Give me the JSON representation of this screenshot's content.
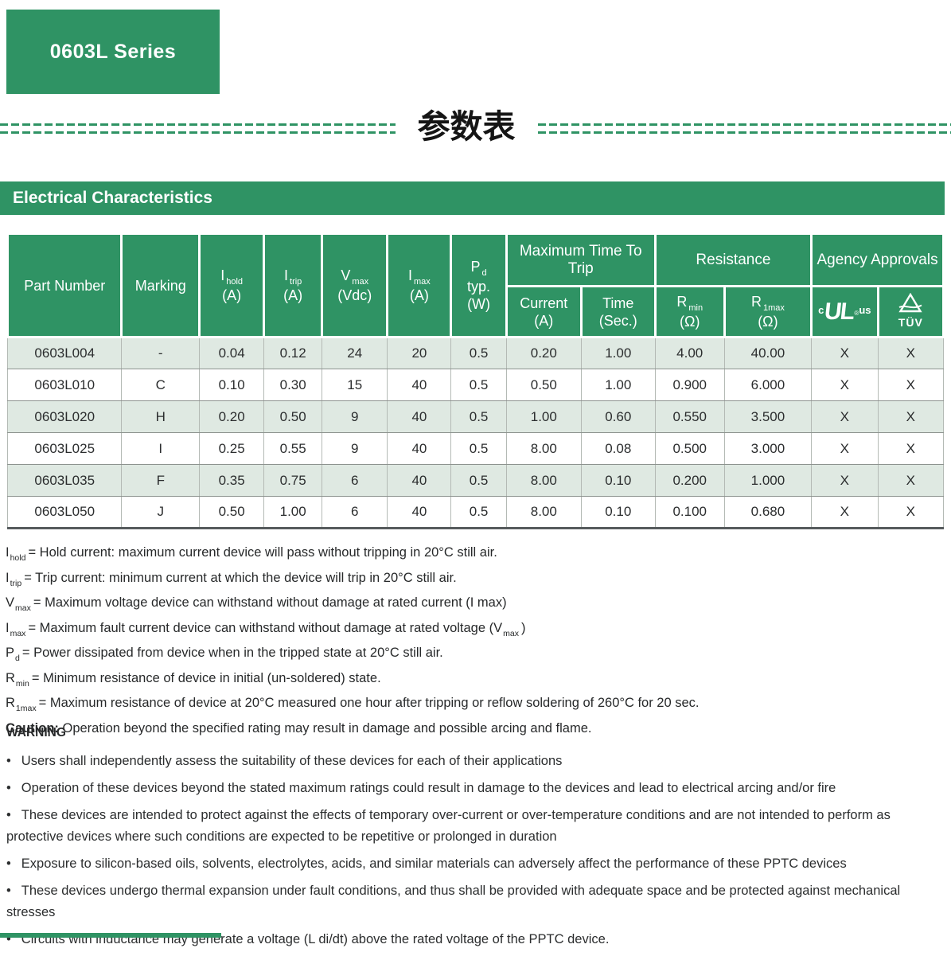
{
  "badge": {
    "label": "0603L Series"
  },
  "section_title_cn": "参数表",
  "table": {
    "title": "Electrical Characteristics",
    "header": {
      "part_number": "Part Number",
      "marking": "Marking",
      "sym_cols": [
        {
          "sym": "I",
          "sub": "hold",
          "unit": "(A)"
        },
        {
          "sym": "I",
          "sub": "trip",
          "unit": "(A)"
        },
        {
          "sym": "V",
          "sub": "max",
          "unit": "(Vdc)"
        },
        {
          "sym": "I",
          "sub": "max",
          "unit": "(A)"
        },
        {
          "sym": "P",
          "sub": "d",
          "mid": "typ.",
          "unit": "(W)"
        }
      ],
      "groups": [
        {
          "label": "Maximum Time To Trip",
          "children": [
            {
              "type": "text",
              "top": "Current",
              "unit": "(A)"
            },
            {
              "type": "text",
              "top": "Time",
              "unit": "(Sec.)"
            }
          ]
        },
        {
          "label": "Resistance",
          "children": [
            {
              "type": "sym",
              "sym": "R",
              "sub": "min",
              "unit": "(Ω)"
            },
            {
              "type": "sym",
              "sym": "R",
              "sub": "1max",
              "unit": "(Ω)"
            }
          ]
        },
        {
          "label": "Agency Approvals",
          "children": [
            {
              "type": "ul",
              "c": "c",
              "main": "UL",
              "reg": "®",
              "us": "us"
            },
            {
              "type": "tuv",
              "label": "TÜV"
            }
          ]
        }
      ]
    },
    "rows": [
      [
        "0603L004",
        "-",
        "0.04",
        "0.12",
        "24",
        "20",
        "0.5",
        "0.20",
        "1.00",
        "4.00",
        "40.00",
        "X",
        "X"
      ],
      [
        "0603L010",
        "C",
        "0.10",
        "0.30",
        "15",
        "40",
        "0.5",
        "0.50",
        "1.00",
        "0.900",
        "6.000",
        "X",
        "X"
      ],
      [
        "0603L020",
        "H",
        "0.20",
        "0.50",
        "9",
        "40",
        "0.5",
        "1.00",
        "0.60",
        "0.550",
        "3.500",
        "X",
        "X"
      ],
      [
        "0603L025",
        "I",
        "0.25",
        "0.55",
        "9",
        "40",
        "0.5",
        "8.00",
        "0.08",
        "0.500",
        "3.000",
        "X",
        "X"
      ],
      [
        "0603L035",
        "F",
        "0.35",
        "0.75",
        "6",
        "40",
        "0.5",
        "8.00",
        "0.10",
        "0.200",
        "1.000",
        "X",
        "X"
      ],
      [
        "0603L050",
        "J",
        "0.50",
        "1.00",
        "6",
        "40",
        "0.5",
        "8.00",
        "0.10",
        "0.100",
        "0.680",
        "X",
        "X"
      ]
    ]
  },
  "footnotes": [
    [
      {
        "t": "I"
      },
      {
        "t": "hold",
        "sub": true
      },
      {
        "t": "= Hold current: maximum current device will pass without tripping in 20°C still air."
      }
    ],
    [
      {
        "t": "I"
      },
      {
        "t": "trip",
        "sub": true
      },
      {
        "t": "= Trip current: minimum current at which the device will trip in 20°C still air."
      }
    ],
    [
      {
        "t": "V"
      },
      {
        "t": "max",
        "sub": true
      },
      {
        "t": "= Maximum voltage device can withstand without damage at rated current (I max)"
      }
    ],
    [
      {
        "t": "I"
      },
      {
        "t": "max",
        "sub": true
      },
      {
        "t": "= Maximum fault current device can withstand without damage at rated voltage (V"
      },
      {
        "t": "max",
        "sub": true
      },
      {
        "t": ")"
      }
    ],
    [
      {
        "t": "P"
      },
      {
        "t": "d",
        "sub": true
      },
      {
        "t": "= Power dissipated from device when in the tripped state at 20°C still air."
      }
    ],
    [
      {
        "t": "R"
      },
      {
        "t": "min",
        "sub": true
      },
      {
        "t": "= Minimum resistance of device in initial (un-soldered) state."
      }
    ],
    [
      {
        "t": "R"
      },
      {
        "t": "1max",
        "sub": true
      },
      {
        "t": "= Maximum resistance of device at 20°C measured one hour after tripping or reflow soldering of 260°C for 20 sec."
      }
    ]
  ],
  "caution": {
    "label": "Caution:",
    "text": " Operation beyond the specified rating may result in damage and possible arcing and flame."
  },
  "warning": {
    "label": "WARNING",
    "bullets": [
      "Users shall independently assess the suitability of these devices for each of their applications",
      "Operation of these devices beyond the stated maximum ratings could result in damage to the devices and lead to electrical arcing and/or fire",
      "These devices are intended to protect against the effects of temporary over-current or over-temperature conditions and are not intended to perform as protective devices where such conditions are expected to be repetitive or prolonged in duration",
      "Exposure to silicon-based oils, solvents, electrolytes, acids, and similar materials can adversely affect the performance of these PPTC devices",
      "These devices undergo thermal expansion under fault conditions, and thus shall be provided with adequate space and be protected against mechanical stresses",
      "Circuits with inductance may generate a voltage (L di/dt) above the rated voltage of the PPTC device."
    ]
  },
  "colors": {
    "brand_green": "#2f9364",
    "row_alt": "#dfe9e2"
  }
}
